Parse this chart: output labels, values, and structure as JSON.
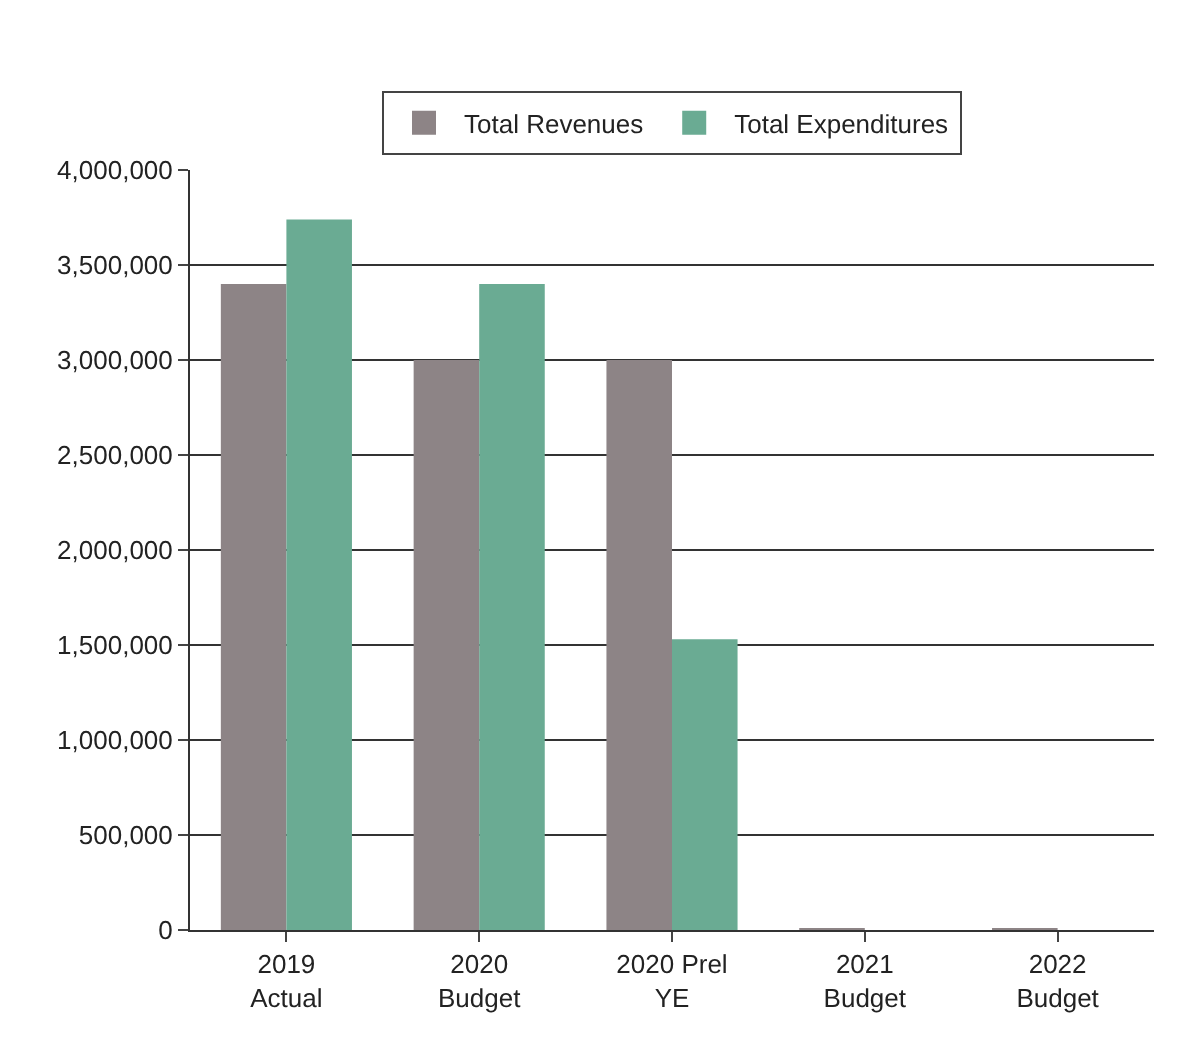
{
  "chart_data": {
    "type": "bar",
    "categories": [
      "2019\nActual",
      "2020\nBudget",
      "2020 Prel\nYE",
      "2021\nBudget",
      "2022\nBudget"
    ],
    "series": [
      {
        "name": "Total Revenues",
        "color": "#8d8486",
        "values": [
          3400000,
          3000000,
          3000000,
          10000,
          10000
        ]
      },
      {
        "name": "Total Expenditures",
        "color": "#6aab93",
        "values": [
          3740000,
          3400000,
          1530000,
          0,
          0
        ]
      }
    ],
    "ylim": [
      0,
      4000000
    ],
    "yticks": [
      {
        "value": 0,
        "label": "0"
      },
      {
        "value": 500000,
        "label": "500,000"
      },
      {
        "value": 1000000,
        "label": "1,000,000"
      },
      {
        "value": 1500000,
        "label": "1,500,000"
      },
      {
        "value": 2000000,
        "label": "2,000,000"
      },
      {
        "value": 2500000,
        "label": "2,500,000"
      },
      {
        "value": 3000000,
        "label": "3,000,000"
      },
      {
        "value": 3500000,
        "label": "3,500,000"
      },
      {
        "value": 4000000,
        "label": "4,000,000"
      }
    ],
    "grid": "y",
    "legend": "top"
  }
}
